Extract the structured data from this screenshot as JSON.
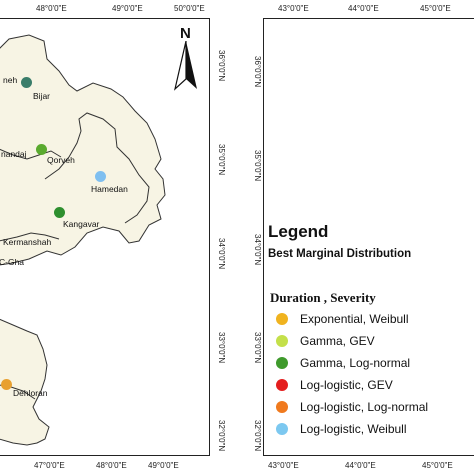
{
  "left_map": {
    "top_ticks": [
      "48°0'0\"E",
      "49°0'0\"E",
      "50°0'0\"E"
    ],
    "bottom_ticks": [
      "47°0'0\"E",
      "48°0'0\"E",
      "49°0'0\"E"
    ],
    "right_ticks": [
      "36°0'0\"N",
      "35°0'0\"N",
      "34°0'0\"N",
      "33°0'0\"N",
      "32°0'0\"N"
    ],
    "north_label": "N",
    "cities": [
      {
        "name": "neh",
        "color": "#3a7d6a"
      },
      {
        "name": "Bijar",
        "color": "#3a7d6a"
      },
      {
        "name": "nandaj",
        "color": "#5aaa2e"
      },
      {
        "name": "Qorveh",
        "color": "#5aaa2e"
      },
      {
        "name": "Hamedan",
        "color": "#7fbff0"
      },
      {
        "name": "Kangavar",
        "color": "#2e8f2e"
      },
      {
        "name": "Kermanshah",
        "color": ""
      },
      {
        "name": "C-Gha",
        "color": ""
      },
      {
        "name": "Dehloran",
        "color": "#e8a030"
      }
    ]
  },
  "right_map": {
    "top_ticks": [
      "43°0'0\"E",
      "44°0'0\"E",
      "45°0'0\"E"
    ],
    "bottom_ticks": [
      "43°0'0\"E",
      "44°0'0\"E",
      "45°0'0\"E"
    ],
    "left_ticks": [
      "36°0'0\"N",
      "35°0'0\"N",
      "34°0'0\"N",
      "33°0'0\"N",
      "32°0'0\"N"
    ]
  },
  "legend": {
    "title": "Legend",
    "subtitle": "Best Marginal Distribution",
    "heading": "Duration , Severity",
    "items": [
      {
        "label": "Exponential, Weibull",
        "color": "#f0b31f"
      },
      {
        "label": "Gamma, GEV",
        "color": "#c4e04a"
      },
      {
        "label": "Gamma, Log-normal",
        "color": "#3f9a2c"
      },
      {
        "label": "Log-logistic, GEV",
        "color": "#e41e1e"
      },
      {
        "label": "Log-logistic, Log-normal",
        "color": "#f07a1e"
      },
      {
        "label": "Log-logistic, Weibull",
        "color": "#7cc8f0"
      }
    ]
  }
}
